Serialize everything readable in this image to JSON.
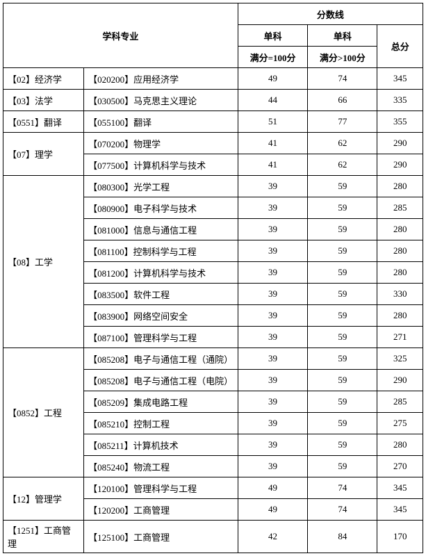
{
  "headers": {
    "subject": "学科专业",
    "scoreline": "分数线",
    "single1": "单科",
    "single2": "单科",
    "total": "总分",
    "full100": "满分=100分",
    "fullgt100": "满分>100分"
  },
  "groups": [
    {
      "category": "【02】经济学",
      "rows": [
        {
          "sub": "【020200】应用经济学",
          "s1": "49",
          "s2": "74",
          "tot": "345"
        }
      ]
    },
    {
      "category": "【03】法学",
      "rows": [
        {
          "sub": "【030500】马克思主义理论",
          "s1": "44",
          "s2": "66",
          "tot": "335"
        }
      ]
    },
    {
      "category": "【0551】翻译",
      "rows": [
        {
          "sub": "【055100】翻译",
          "s1": "51",
          "s2": "77",
          "tot": "355"
        }
      ]
    },
    {
      "category": "【07】理学",
      "rows": [
        {
          "sub": "【070200】物理学",
          "s1": "41",
          "s2": "62",
          "tot": "290"
        },
        {
          "sub": "【077500】计算机科学与技术",
          "s1": "41",
          "s2": "62",
          "tot": "290"
        }
      ]
    },
    {
      "category": "【08】工学",
      "rows": [
        {
          "sub": "【080300】光学工程",
          "s1": "39",
          "s2": "59",
          "tot": "280"
        },
        {
          "sub": "【080900】电子科学与技术",
          "s1": "39",
          "s2": "59",
          "tot": "285"
        },
        {
          "sub": "【081000】信息与通信工程",
          "s1": "39",
          "s2": "59",
          "tot": "280"
        },
        {
          "sub": "【081100】控制科学与工程",
          "s1": "39",
          "s2": "59",
          "tot": "280"
        },
        {
          "sub": "【081200】计算机科学与技术",
          "s1": "39",
          "s2": "59",
          "tot": "280"
        },
        {
          "sub": "【083500】软件工程",
          "s1": "39",
          "s2": "59",
          "tot": "330"
        },
        {
          "sub": "【083900】网络空间安全",
          "s1": "39",
          "s2": "59",
          "tot": "280"
        },
        {
          "sub": "【087100】管理科学与工程",
          "s1": "39",
          "s2": "59",
          "tot": "271"
        }
      ]
    },
    {
      "category": "【0852】工程",
      "rows": [
        {
          "sub": "【085208】电子与通信工程（通院）",
          "s1": "39",
          "s2": "59",
          "tot": "325"
        },
        {
          "sub": "【085208】电子与通信工程（电院）",
          "s1": "39",
          "s2": "59",
          "tot": "290"
        },
        {
          "sub": "【085209】集成电路工程",
          "s1": "39",
          "s2": "59",
          "tot": "285"
        },
        {
          "sub": "【085210】控制工程",
          "s1": "39",
          "s2": "59",
          "tot": "275"
        },
        {
          "sub": "【085211】计算机技术",
          "s1": "39",
          "s2": "59",
          "tot": "280"
        },
        {
          "sub": "【085240】物流工程",
          "s1": "39",
          "s2": "59",
          "tot": "270"
        }
      ]
    },
    {
      "category": "【12】管理学",
      "rows": [
        {
          "sub": "【120100】管理科学与工程",
          "s1": "49",
          "s2": "74",
          "tot": "345"
        },
        {
          "sub": "【120200】工商管理",
          "s1": "49",
          "s2": "74",
          "tot": "345"
        }
      ]
    },
    {
      "category": "【1251】工商管理",
      "rows": [
        {
          "sub": "【125100】工商管理",
          "s1": "42",
          "s2": "84",
          "tot": "170"
        }
      ]
    }
  ]
}
